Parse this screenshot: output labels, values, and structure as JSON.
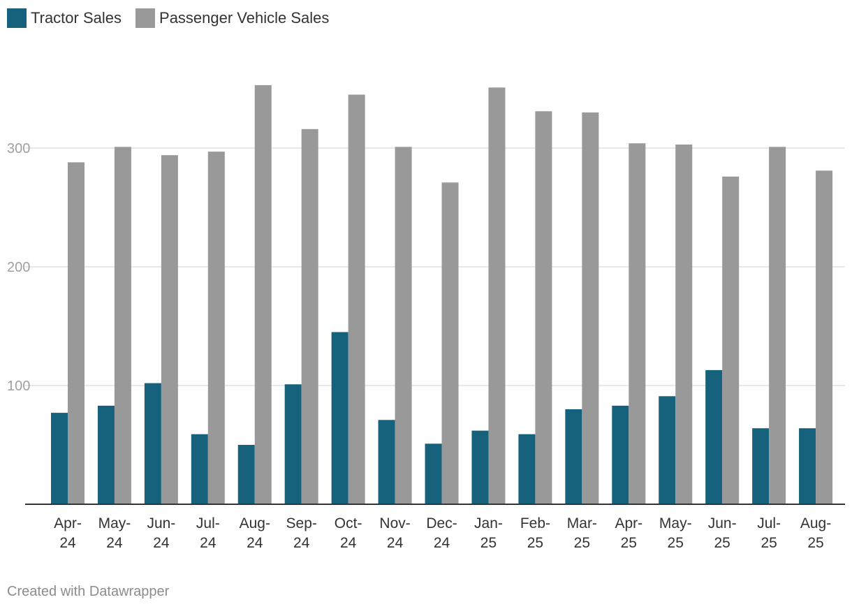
{
  "footer": "Created with Datawrapper",
  "chart_data": {
    "type": "bar",
    "title": "",
    "xlabel": "",
    "ylabel": "",
    "ylim": [
      0,
      360
    ],
    "yticks": [
      100,
      200,
      300
    ],
    "grid": true,
    "legend_position": "top-left",
    "categories": [
      [
        "Apr-",
        "24"
      ],
      [
        "May-",
        "24"
      ],
      [
        "Jun-",
        "24"
      ],
      [
        "Jul-",
        "24"
      ],
      [
        "Aug-",
        "24"
      ],
      [
        "Sep-",
        "24"
      ],
      [
        "Oct-",
        "24"
      ],
      [
        "Nov-",
        "24"
      ],
      [
        "Dec-",
        "24"
      ],
      [
        "Jan-",
        "25"
      ],
      [
        "Feb-",
        "25"
      ],
      [
        "Mar-",
        "25"
      ],
      [
        "Apr-",
        "25"
      ],
      [
        "May-",
        "25"
      ],
      [
        "Jun-",
        "25"
      ],
      [
        "Jul-",
        "25"
      ],
      [
        "Aug-",
        "25"
      ]
    ],
    "series": [
      {
        "name": "Tractor Sales",
        "color": "#16617c",
        "values": [
          77,
          83,
          102,
          59,
          50,
          101,
          145,
          71,
          51,
          62,
          59,
          80,
          83,
          91,
          113,
          64,
          64
        ]
      },
      {
        "name": "Passenger Vehicle Sales",
        "color": "#999999",
        "values": [
          288,
          301,
          294,
          297,
          353,
          316,
          345,
          301,
          271,
          351,
          331,
          330,
          304,
          303,
          276,
          301,
          281
        ]
      }
    ]
  }
}
